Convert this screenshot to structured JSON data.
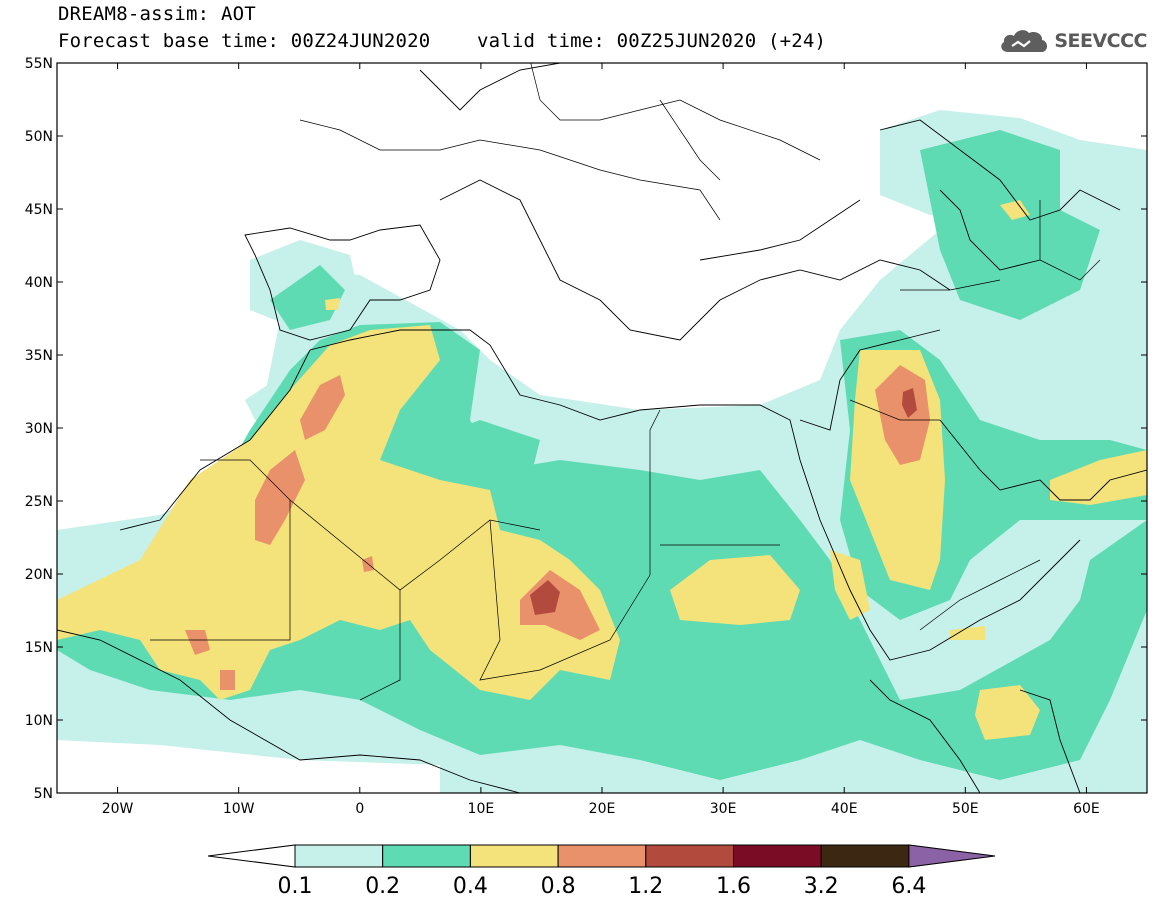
{
  "header": {
    "title": "DREAM8-assim: AOT",
    "subtitle": "Forecast base time: 00Z24JUN2020    valid time: 00Z25JUN2020 (+24)",
    "brand": "SEEVCCC"
  },
  "map": {
    "lon_range": [
      -25,
      65
    ],
    "lat_range": [
      5,
      55
    ],
    "lat_ticks": [
      "55N",
      "50N",
      "45N",
      "40N",
      "35N",
      "30N",
      "25N",
      "20N",
      "15N",
      "10N",
      "5N"
    ],
    "lon_ticks": [
      "20W",
      "10W",
      "0",
      "10E",
      "20E",
      "30E",
      "40E",
      "50E",
      "60E"
    ]
  },
  "colorbar": {
    "labels": [
      "0.1",
      "0.2",
      "0.4",
      "0.8",
      "1.2",
      "1.6",
      "3.2",
      "6.4"
    ],
    "colors": [
      "#ffffff",
      "#c6f0ea",
      "#5fdbb4",
      "#f4e27a",
      "#e8916a",
      "#b34a3e",
      "#7a0c26",
      "#3c2812",
      "#8c62a6"
    ]
  }
}
